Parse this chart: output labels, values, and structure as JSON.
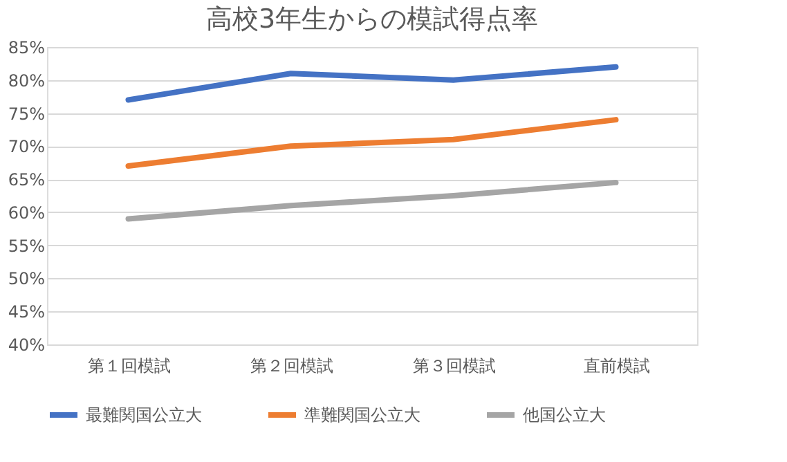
{
  "chart_data": {
    "type": "line",
    "title": "高校3年生からの模試得点率",
    "categories": [
      "第１回模試",
      "第２回模試",
      "第３回模試",
      "直前模試"
    ],
    "series": [
      {
        "name": "最難関国公立大",
        "color": "#4472c4",
        "values": [
          77,
          81,
          80,
          82
        ]
      },
      {
        "name": "準難関国公立大",
        "color": "#ed7d31",
        "values": [
          67,
          70,
          71,
          74
        ]
      },
      {
        "name": "他国公立大",
        "color": "#a5a5a5",
        "values": [
          59,
          61,
          62.5,
          64.5
        ]
      }
    ],
    "ylim": [
      40,
      85
    ],
    "yticks": [
      {
        "value": 40,
        "label": "40%"
      },
      {
        "value": 45,
        "label": "45%"
      },
      {
        "value": 50,
        "label": "50%"
      },
      {
        "value": 55,
        "label": "55%"
      },
      {
        "value": 60,
        "label": "60%"
      },
      {
        "value": 65,
        "label": "65%"
      },
      {
        "value": 70,
        "label": "70%"
      },
      {
        "value": 75,
        "label": "75%"
      },
      {
        "value": 80,
        "label": "80%"
      },
      {
        "value": 85,
        "label": "85%"
      }
    ],
    "grid": "y",
    "legend": "bottom",
    "marker": "none",
    "line_style": "solid"
  }
}
